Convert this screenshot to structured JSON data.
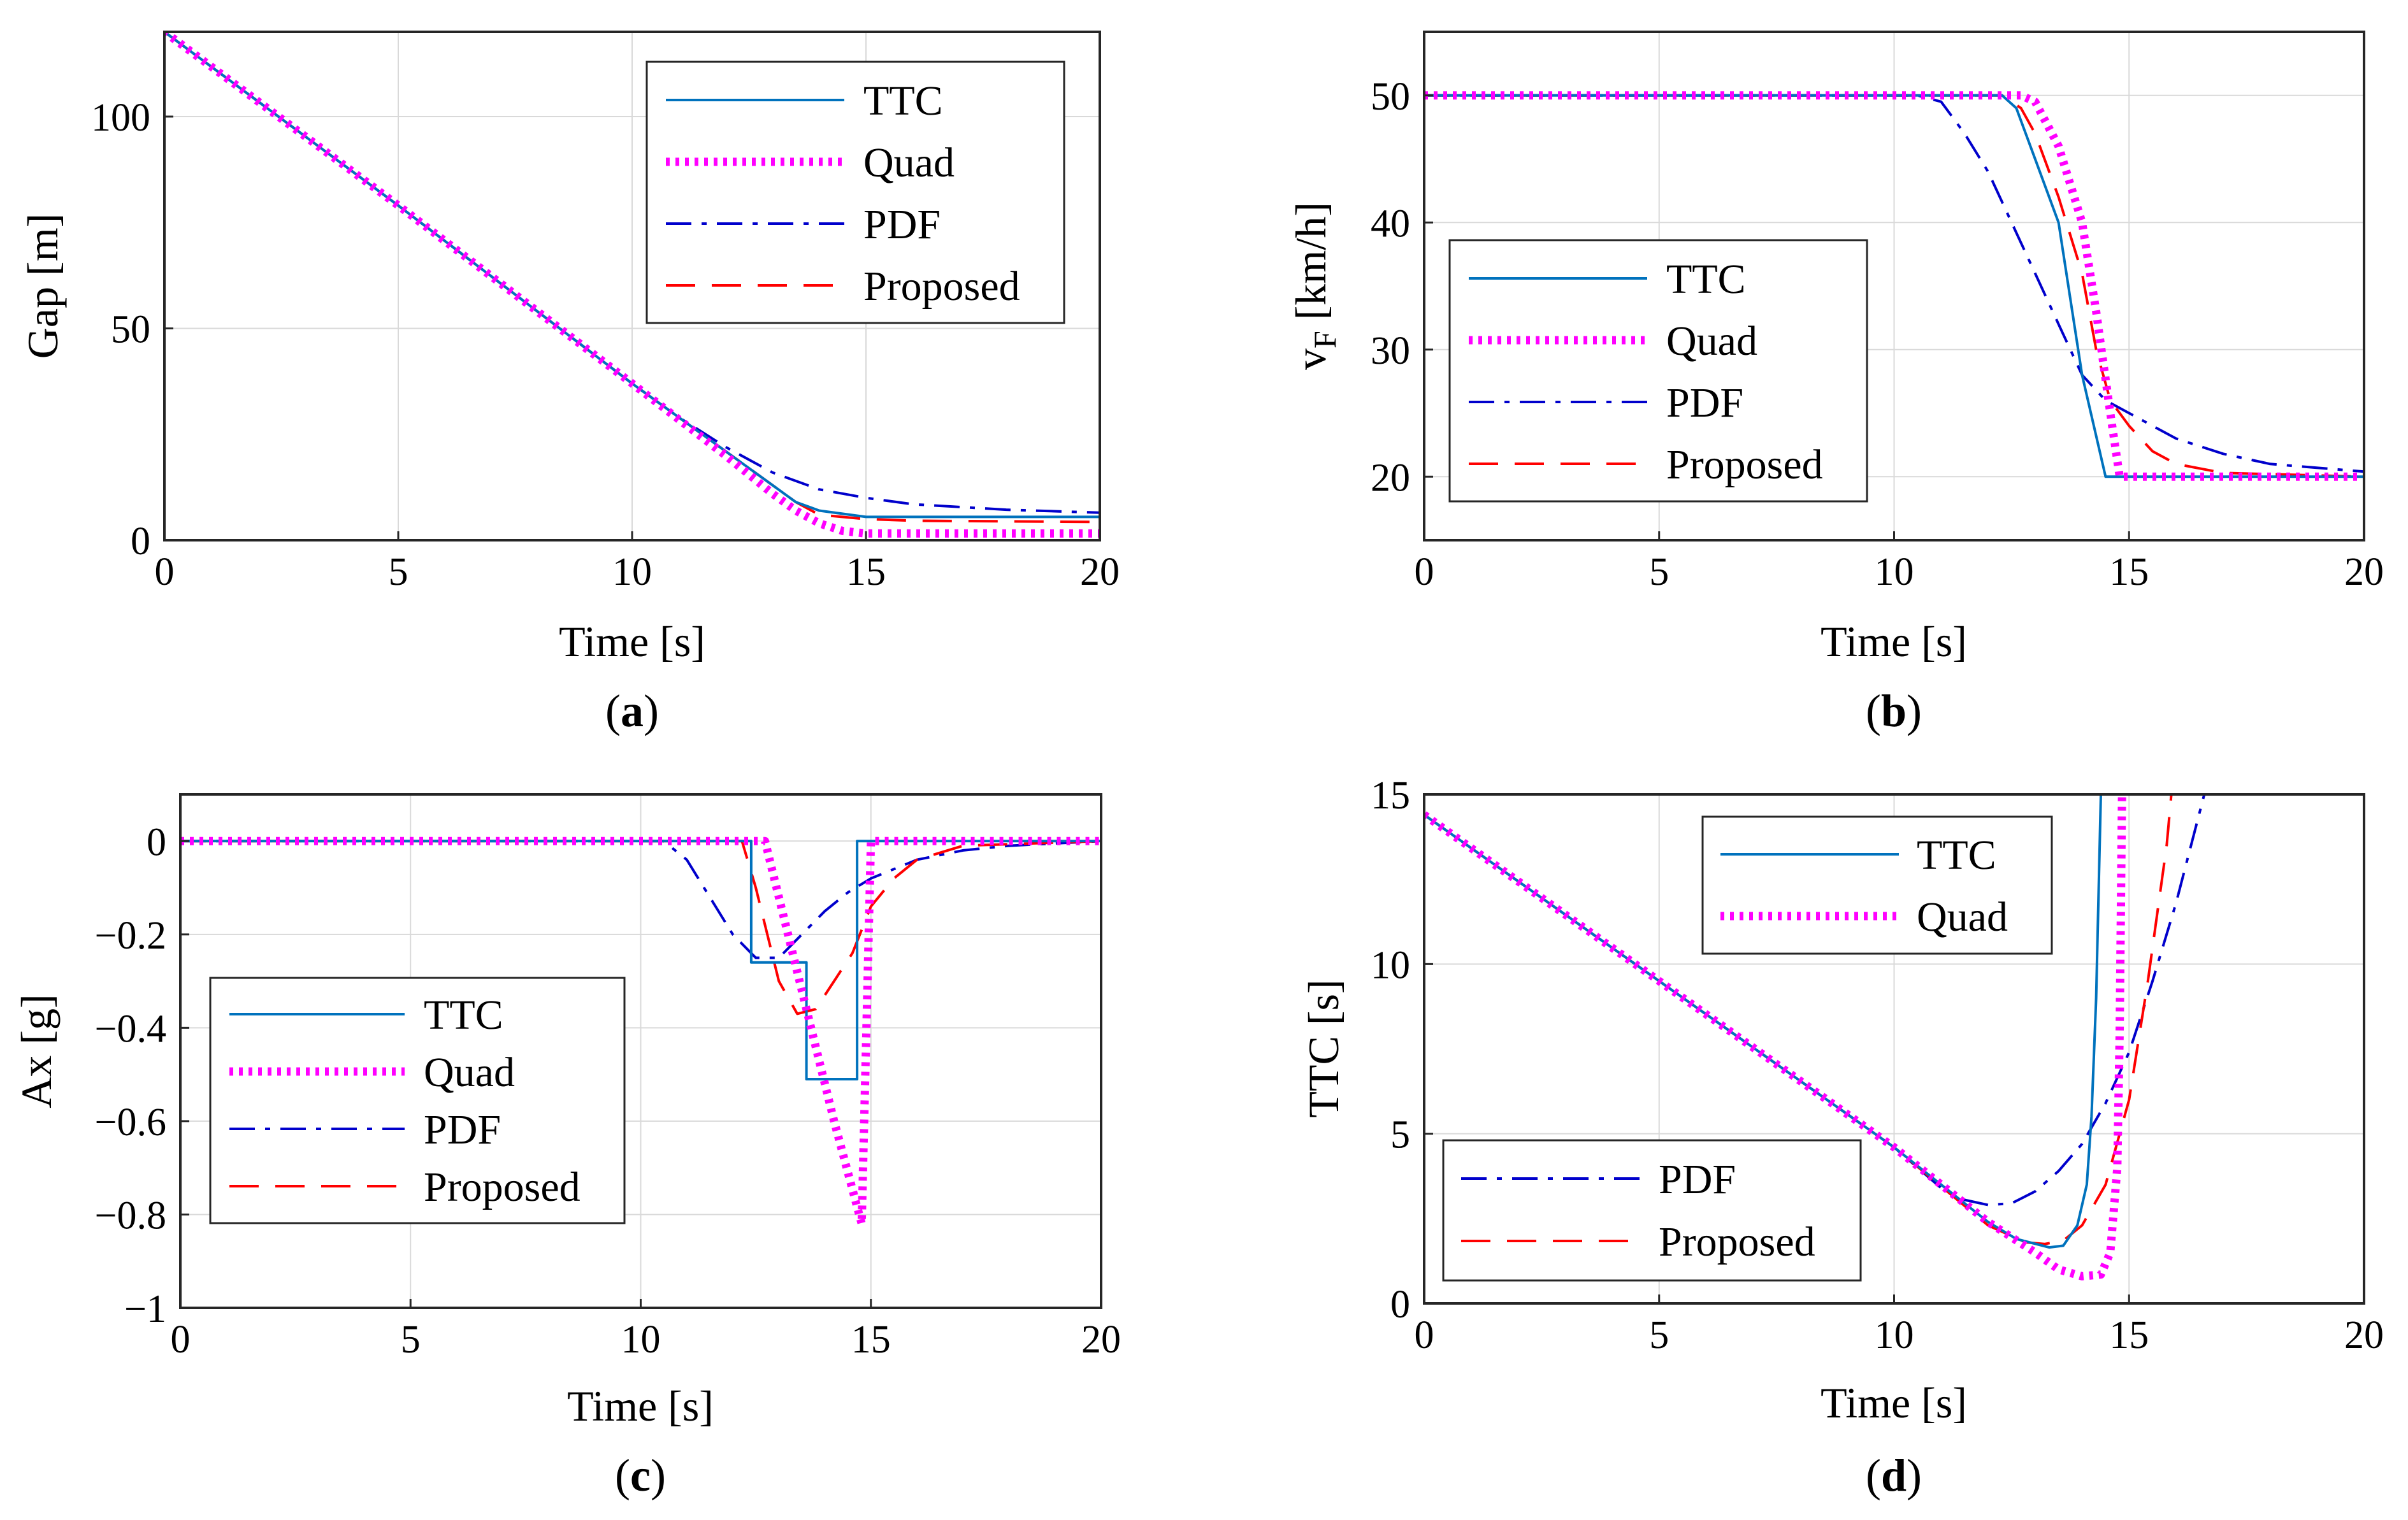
{
  "colors": {
    "TTC": "#0072BD",
    "Quad": "#FF00FF",
    "PDF": "#0000CC",
    "Proposed": "#FF0000",
    "grid": "#d9d9d9"
  },
  "chart_data": [
    {
      "id": "a",
      "type": "line",
      "caption": "a",
      "xlabel": "Time [s]",
      "ylabel": "Gap [m]",
      "xlim": [
        0,
        20
      ],
      "ylim": [
        0,
        120
      ],
      "xticks": [
        "0",
        "5",
        "10",
        "15",
        "20"
      ],
      "xtick_values": [
        0,
        5,
        10,
        15,
        20
      ],
      "yticks": [
        "0",
        "50",
        "100"
      ],
      "ytick_values": [
        0,
        50,
        100
      ],
      "grid": true,
      "legend_position": "top-right",
      "legend": [
        {
          "name": "TTC"
        },
        {
          "name": "Quad"
        },
        {
          "name": "PDF"
        },
        {
          "name": "Proposed"
        }
      ],
      "series": [
        {
          "name": "TTC",
          "style": "solid",
          "points": [
            [
              0,
              120
            ],
            [
              5,
              79
            ],
            [
              10,
              37
            ],
            [
              12,
              21
            ],
            [
              13,
              13
            ],
            [
              13.5,
              9
            ],
            [
              14,
              7
            ],
            [
              15,
              5.5
            ],
            [
              16,
              5.5
            ],
            [
              20,
              5.5
            ]
          ]
        },
        {
          "name": "Quad",
          "style": "dotted",
          "points": [
            [
              0,
              120
            ],
            [
              5,
              79
            ],
            [
              10,
              37
            ],
            [
              12,
              20
            ],
            [
              13,
              11
            ],
            [
              13.5,
              7
            ],
            [
              14,
              4
            ],
            [
              14.5,
              2.2
            ],
            [
              15,
              1.6
            ],
            [
              16,
              1.6
            ],
            [
              20,
              1.6
            ]
          ]
        },
        {
          "name": "PDF",
          "style": "dashdot",
          "points": [
            [
              0,
              120
            ],
            [
              5,
              79
            ],
            [
              10,
              37
            ],
            [
              11,
              29
            ],
            [
              12,
              22
            ],
            [
              13,
              16
            ],
            [
              14,
              12
            ],
            [
              15,
              10
            ],
            [
              16,
              8.5
            ],
            [
              18,
              7.2
            ],
            [
              20,
              6.5
            ]
          ]
        },
        {
          "name": "Proposed",
          "style": "dashed",
          "points": [
            [
              0,
              120
            ],
            [
              5,
              79
            ],
            [
              10,
              37
            ],
            [
              12,
              21
            ],
            [
              13,
              13
            ],
            [
              13.5,
              9
            ],
            [
              14,
              6
            ],
            [
              15,
              5
            ],
            [
              16,
              4.6
            ],
            [
              20,
              4.3
            ]
          ]
        }
      ]
    },
    {
      "id": "b",
      "type": "line",
      "caption": "b",
      "xlabel": "Time [s]",
      "ylabel": "v",
      "ylabel_sub": "F",
      "ylabel_suffix": " [km/h]",
      "xlim": [
        0,
        20
      ],
      "ylim": [
        15,
        55
      ],
      "xticks": [
        "0",
        "5",
        "10",
        "15",
        "20"
      ],
      "xtick_values": [
        0,
        5,
        10,
        15,
        20
      ],
      "yticks": [
        "20",
        "30",
        "40",
        "50"
      ],
      "ytick_values": [
        20,
        30,
        40,
        50
      ],
      "grid": true,
      "legend_position": "middle-left",
      "legend": [
        {
          "name": "TTC"
        },
        {
          "name": "Quad"
        },
        {
          "name": "PDF"
        },
        {
          "name": "Proposed"
        }
      ],
      "series": [
        {
          "name": "TTC",
          "style": "solid",
          "points": [
            [
              0,
              50
            ],
            [
              12.3,
              50
            ],
            [
              12.6,
              49
            ],
            [
              13,
              45
            ],
            [
              13.5,
              40
            ],
            [
              14,
              28
            ],
            [
              14.5,
              20
            ],
            [
              20,
              20
            ]
          ]
        },
        {
          "name": "Quad",
          "style": "dotted",
          "points": [
            [
              0,
              50
            ],
            [
              12.7,
              50
            ],
            [
              13,
              49.5
            ],
            [
              13.5,
              46
            ],
            [
              14,
              40
            ],
            [
              14.3,
              33
            ],
            [
              14.6,
              25
            ],
            [
              14.8,
              20
            ],
            [
              20,
              20
            ]
          ]
        },
        {
          "name": "PDF",
          "style": "dashdot",
          "points": [
            [
              0,
              50
            ],
            [
              10.5,
              50
            ],
            [
              11,
              49.5
            ],
            [
              11.5,
              47
            ],
            [
              12,
              44
            ],
            [
              12.5,
              40
            ],
            [
              13,
              36
            ],
            [
              13.5,
              32
            ],
            [
              14,
              28
            ],
            [
              14.5,
              26
            ],
            [
              15,
              25
            ],
            [
              16,
              23
            ],
            [
              17,
              21.8
            ],
            [
              18,
              21
            ],
            [
              20,
              20.4
            ]
          ]
        },
        {
          "name": "Proposed",
          "style": "dashed",
          "points": [
            [
              0,
              50
            ],
            [
              12.3,
              50
            ],
            [
              12.7,
              49
            ],
            [
              13,
              47
            ],
            [
              13.5,
              42
            ],
            [
              14,
              36
            ],
            [
              14.3,
              30
            ],
            [
              14.6,
              26
            ],
            [
              15,
              24
            ],
            [
              15.5,
              22
            ],
            [
              16,
              21
            ],
            [
              17,
              20.3
            ],
            [
              20,
              20
            ]
          ]
        }
      ]
    },
    {
      "id": "c",
      "type": "line",
      "caption": "c",
      "xlabel": "Time [s]",
      "ylabel": "Ax [g]",
      "xlim": [
        0,
        20
      ],
      "ylim": [
        -1,
        0.1
      ],
      "xticks": [
        "0",
        "5",
        "10",
        "15",
        "20"
      ],
      "xtick_values": [
        0,
        5,
        10,
        15,
        20
      ],
      "yticks": [
        "−1",
        "−0.8",
        "−0.6",
        "−0.4",
        "−0.2",
        "0"
      ],
      "ytick_values": [
        -1,
        -0.8,
        -0.6,
        -0.4,
        -0.2,
        0
      ],
      "grid": true,
      "legend_position": "middle-left",
      "legend": [
        {
          "name": "TTC"
        },
        {
          "name": "Quad"
        },
        {
          "name": "PDF"
        },
        {
          "name": "Proposed"
        }
      ],
      "series": [
        {
          "name": "TTC",
          "style": "solid",
          "points": [
            [
              0,
              0
            ],
            [
              12.4,
              0
            ],
            [
              12.4,
              -0.26
            ],
            [
              13.6,
              -0.26
            ],
            [
              13.6,
              -0.51
            ],
            [
              14.7,
              -0.51
            ],
            [
              14.7,
              0
            ],
            [
              20,
              0
            ]
          ]
        },
        {
          "name": "Quad",
          "style": "dotted",
          "points": [
            [
              0,
              0
            ],
            [
              12.7,
              0
            ],
            [
              13.2,
              -0.2
            ],
            [
              13.7,
              -0.4
            ],
            [
              14.2,
              -0.6
            ],
            [
              14.8,
              -0.82
            ],
            [
              15,
              0
            ],
            [
              20,
              0
            ]
          ]
        },
        {
          "name": "PDF",
          "style": "dashdot",
          "points": [
            [
              0,
              0
            ],
            [
              10.5,
              0
            ],
            [
              11,
              -0.04
            ],
            [
              11.5,
              -0.12
            ],
            [
              12,
              -0.2
            ],
            [
              12.5,
              -0.25
            ],
            [
              13,
              -0.25
            ],
            [
              13.5,
              -0.2
            ],
            [
              14,
              -0.15
            ],
            [
              14.5,
              -0.11
            ],
            [
              15,
              -0.08
            ],
            [
              16,
              -0.04
            ],
            [
              17,
              -0.02
            ],
            [
              18,
              -0.01
            ],
            [
              20,
              0
            ]
          ]
        },
        {
          "name": "Proposed",
          "style": "dashed",
          "points": [
            [
              0,
              0
            ],
            [
              12.2,
              0
            ],
            [
              12.5,
              -0.1
            ],
            [
              13,
              -0.3
            ],
            [
              13.4,
              -0.37
            ],
            [
              13.8,
              -0.36
            ],
            [
              14.2,
              -0.3
            ],
            [
              14.6,
              -0.24
            ],
            [
              15,
              -0.14
            ],
            [
              15.5,
              -0.08
            ],
            [
              16,
              -0.04
            ],
            [
              17,
              -0.01
            ],
            [
              20,
              0
            ]
          ]
        }
      ]
    },
    {
      "id": "d",
      "type": "line",
      "caption": "d",
      "xlabel": "Time [s]",
      "ylabel": "TTC [s]",
      "xlim": [
        0,
        20
      ],
      "ylim": [
        0,
        15
      ],
      "xticks": [
        "0",
        "5",
        "10",
        "15",
        "20"
      ],
      "xtick_values": [
        0,
        5,
        10,
        15,
        20
      ],
      "yticks": [
        "0",
        "5",
        "10",
        "15"
      ],
      "ytick_values": [
        0,
        5,
        10,
        15
      ],
      "grid": true,
      "legend_position": "top-center and bottom-left (two legends)",
      "legend": [
        {
          "name": "TTC",
          "group": 1
        },
        {
          "name": "Quad",
          "group": 1
        },
        {
          "name": "PDF",
          "group": 2
        },
        {
          "name": "Proposed",
          "group": 2
        }
      ],
      "series": [
        {
          "name": "TTC",
          "style": "solid",
          "points": [
            [
              0,
              14.4
            ],
            [
              5,
              9.5
            ],
            [
              10,
              4.6
            ],
            [
              11,
              3.5
            ],
            [
              12,
              2.4
            ],
            [
              12.6,
              1.9
            ],
            [
              13.3,
              1.65
            ],
            [
              13.6,
              1.7
            ],
            [
              13.9,
              2.3
            ],
            [
              14.1,
              3.5
            ],
            [
              14.2,
              5.5
            ],
            [
              14.3,
              9
            ],
            [
              14.4,
              15
            ]
          ]
        },
        {
          "name": "Quad",
          "style": "dotted",
          "points": [
            [
              0,
              14.4
            ],
            [
              5,
              9.5
            ],
            [
              10,
              4.6
            ],
            [
              11,
              3.5
            ],
            [
              12,
              2.4
            ],
            [
              13,
              1.5
            ],
            [
              13.5,
              1.0
            ],
            [
              14,
              0.8
            ],
            [
              14.4,
              0.85
            ],
            [
              14.6,
              1.5
            ],
            [
              14.75,
              4
            ],
            [
              14.8,
              8
            ],
            [
              14.85,
              15
            ]
          ]
        },
        {
          "name": "PDF",
          "style": "dashdot",
          "points": [
            [
              0,
              14.4
            ],
            [
              5,
              9.5
            ],
            [
              10,
              4.6
            ],
            [
              11,
              3.4
            ],
            [
              11.5,
              3.05
            ],
            [
              12,
              2.9
            ],
            [
              12.5,
              2.95
            ],
            [
              13,
              3.3
            ],
            [
              13.5,
              3.9
            ],
            [
              14,
              4.7
            ],
            [
              14.5,
              5.9
            ],
            [
              15,
              7.4
            ],
            [
              15.5,
              9.5
            ],
            [
              16,
              11.8
            ],
            [
              16.6,
              15
            ]
          ]
        },
        {
          "name": "Proposed",
          "style": "dashed",
          "points": [
            [
              0,
              14.4
            ],
            [
              5,
              9.5
            ],
            [
              10,
              4.6
            ],
            [
              11,
              3.45
            ],
            [
              12,
              2.3
            ],
            [
              12.8,
              1.8
            ],
            [
              13.2,
              1.75
            ],
            [
              13.6,
              1.85
            ],
            [
              14,
              2.3
            ],
            [
              14.5,
              3.5
            ],
            [
              15,
              6
            ],
            [
              15.4,
              9.5
            ],
            [
              15.8,
              13.5
            ],
            [
              15.9,
              15
            ]
          ]
        }
      ]
    }
  ]
}
